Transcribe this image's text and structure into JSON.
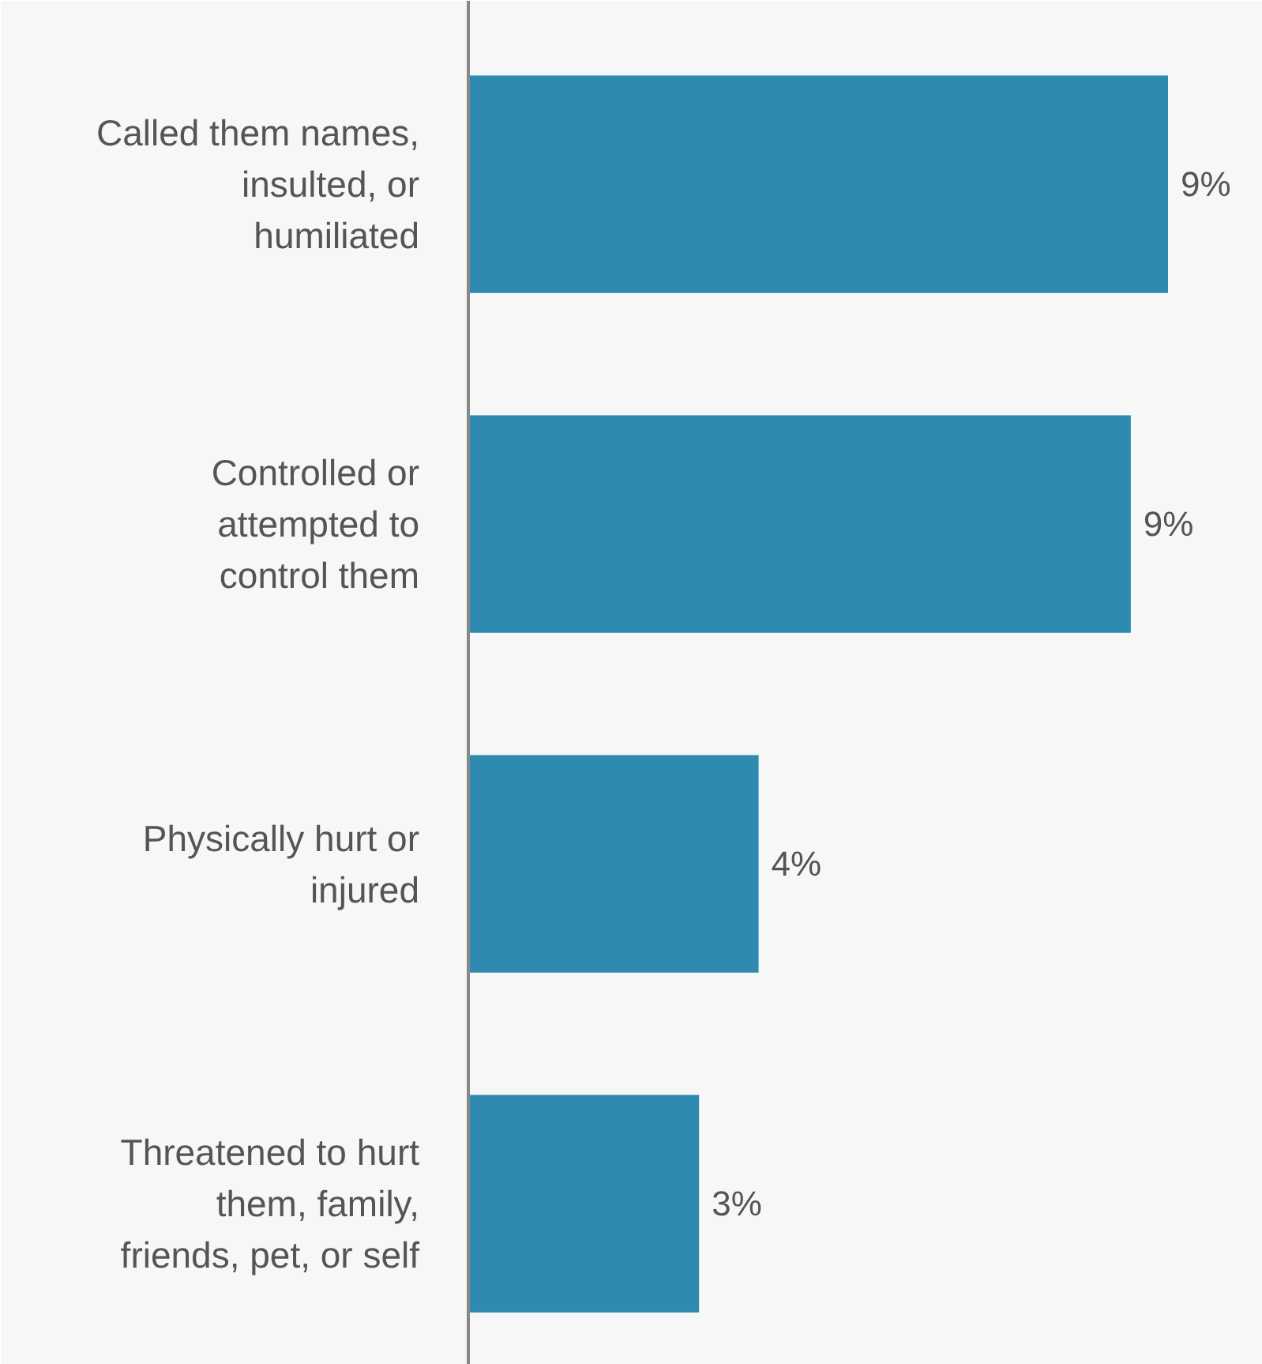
{
  "chart_data": {
    "type": "bar",
    "orientation": "horizontal",
    "categories": [
      "Called them names,\ninsulted, or\nhumiliated",
      "Controlled or\nattempted to\ncontrol them",
      "Physically hurt or\ninjured",
      "Threatened to hurt\nthem, family,\nfriends, pet, or self"
    ],
    "values": [
      9.4,
      8.9,
      3.9,
      3.1
    ],
    "value_labels": [
      "9%",
      "9%",
      "4%",
      "3%"
    ],
    "color": "#2e8ab0",
    "grid": false
  }
}
